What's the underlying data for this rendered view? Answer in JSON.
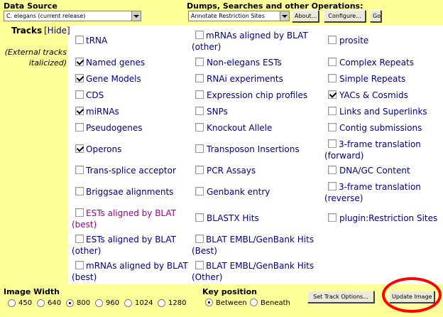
{
  "header": {
    "data_source_label": "Data Source",
    "data_source_value": "C. elegans (current release)",
    "dumps_label": "Dumps, Searches and other Operations:",
    "dumps_value": "Annotate Restriction Sites",
    "about_label": "About...",
    "configure_label": "Configure...",
    "go_label": "Go"
  },
  "tracks": {
    "title": "Tracks",
    "hide_link": "[Hide]",
    "external_note": "(External tracks italicized)",
    "items": [
      {
        "label": "tRNA",
        "checked": false
      },
      {
        "label": "Named genes",
        "checked": true
      },
      {
        "label": "Gene Models",
        "checked": true
      },
      {
        "label": "CDS",
        "checked": false
      },
      {
        "label": "miRNAs",
        "checked": true
      },
      {
        "label": "Pseudogenes",
        "checked": false
      },
      {
        "label": "Operons",
        "checked": true
      },
      {
        "label": "Trans-splice acceptor",
        "checked": false
      },
      {
        "label": "Briggsae alignments",
        "checked": false
      },
      {
        "label": "ESTs aligned by BLAT (best)",
        "checked": false
      },
      {
        "label": "ESTs aligned by BLAT (other)",
        "checked": false
      },
      {
        "label": "mRNAs aligned by BLAT (best)",
        "checked": false
      },
      {
        "label": "mRNAs aligned by BLAT (other)",
        "checked": false
      },
      {
        "label": "Non-elegans ESTs",
        "checked": false
      },
      {
        "label": "RNAi experiments",
        "checked": false
      },
      {
        "label": "Expression chip profiles",
        "checked": false
      },
      {
        "label": "SNPs",
        "checked": false
      },
      {
        "label": "Knockout Allele",
        "checked": false
      },
      {
        "label": "Transposon Insertions",
        "checked": false
      },
      {
        "label": "PCR Assays",
        "checked": false
      },
      {
        "label": "Genbank entry",
        "checked": false
      },
      {
        "label": "BLASTX Hits",
        "checked": false
      },
      {
        "label": "BLAT EMBL/GenBank Hits (Best)",
        "checked": false
      },
      {
        "label": "BLAT EMBL/GenBank Hits (Other)",
        "checked": false
      },
      {
        "label": "prosite",
        "checked": false
      },
      {
        "label": "Complex Repeats",
        "checked": false
      },
      {
        "label": "Simple Repeats",
        "checked": false
      },
      {
        "label": "YACs & Cosmids",
        "checked": true
      },
      {
        "label": "Links and Superlinks",
        "checked": false
      },
      {
        "label": "Contig submissions",
        "checked": false
      },
      {
        "label": "3-frame translation (forward)",
        "checked": false
      },
      {
        "label": "DNA/GC Content",
        "checked": false
      },
      {
        "label": "3-frame translation (reverse)",
        "checked": false
      },
      {
        "label": "plugin:Restriction Sites",
        "checked": false
      }
    ]
  },
  "footer": {
    "image_width_label": "Image Width",
    "widths": [
      {
        "label": "450",
        "selected": false
      },
      {
        "label": "640",
        "selected": false
      },
      {
        "label": "800",
        "selected": true
      },
      {
        "label": "960",
        "selected": false
      },
      {
        "label": "1024",
        "selected": false
      },
      {
        "label": "1280",
        "selected": false
      }
    ],
    "key_position_label": "Key position",
    "key_positions": [
      {
        "label": "Between",
        "selected": true
      },
      {
        "label": "Beneath",
        "selected": false
      }
    ],
    "set_track_options_label": "Set Track Options...",
    "update_image_label": "Update Image"
  },
  "colors": {
    "panel_bg": "#ffff99",
    "track_link": "#000080",
    "external_track": "#a0008a",
    "highlight_ring": "#ff0000"
  }
}
